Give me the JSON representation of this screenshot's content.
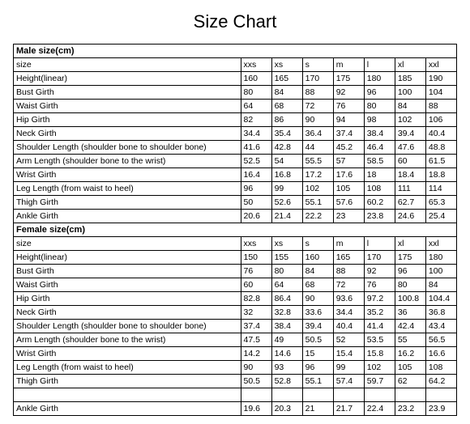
{
  "title": "Size Chart",
  "columns_count": 7,
  "sizes": [
    "xxs",
    "xs",
    "s",
    "m",
    "l",
    "xl",
    "xxl"
  ],
  "sections": [
    {
      "header": "Male size(cm)",
      "size_label": "size",
      "size_values": [
        "xxs",
        "xs",
        "s",
        "m",
        "l",
        "xl",
        "xxl"
      ],
      "rows": [
        {
          "label": "Height(linear)",
          "values": [
            "160",
            "165",
            "170",
            "175",
            "180",
            "185",
            "190"
          ]
        },
        {
          "label": "Bust Girth",
          "values": [
            "80",
            "84",
            "88",
            "92",
            "96",
            "100",
            "104"
          ]
        },
        {
          "label": "Waist Girth",
          "values": [
            "64",
            "68",
            "72",
            "76",
            "80",
            "84",
            "88"
          ]
        },
        {
          "label": "Hip Girth",
          "values": [
            "82",
            "86",
            "90",
            "94",
            "98",
            "102",
            "106"
          ]
        },
        {
          "label": "Neck Girth",
          "values": [
            "34.4",
            "35.4",
            "36.4",
            "37.4",
            "38.4",
            "39.4",
            "40.4"
          ]
        },
        {
          "label": "Shoulder Length (shoulder bone to shoulder bone)",
          "values": [
            "41.6",
            "42.8",
            "44",
            "45.2",
            "46.4",
            "47.6",
            "48.8"
          ]
        },
        {
          "label": "Arm Length (shoulder bone to the wrist)",
          "values": [
            "52.5",
            "54",
            "55.5",
            "57",
            "58.5",
            "60",
            "61.5"
          ]
        },
        {
          "label": "Wrist Girth",
          "values": [
            "16.4",
            "16.8",
            "17.2",
            "17.6",
            "18",
            "18.4",
            "18.8"
          ]
        },
        {
          "label": "Leg Length (from waist to heel)",
          "values": [
            "96",
            "99",
            "102",
            "105",
            "108",
            "111",
            "114"
          ],
          "dash_top": true
        },
        {
          "label": "Thigh Girth",
          "values": [
            "50",
            "52.6",
            "55.1",
            "57.6",
            "60.2",
            "62.7",
            "65.3"
          ]
        },
        {
          "label": "Ankle Girth",
          "values": [
            "20.6",
            "21.4",
            "22.2",
            "23",
            "23.8",
            "24.6",
            "25.4"
          ],
          "dash_bottom": true
        }
      ]
    },
    {
      "header": "Female size(cm)",
      "size_label": "size",
      "size_values": [
        "xxs",
        "xs",
        "s",
        "m",
        "l",
        "xl",
        "xxl"
      ],
      "rows": [
        {
          "label": "Height(linear)",
          "values": [
            "150",
            "155",
            "160",
            "165",
            "170",
            "175",
            "180"
          ]
        },
        {
          "label": "Bust Girth",
          "values": [
            "76",
            "80",
            "84",
            "88",
            "92",
            "96",
            "100"
          ]
        },
        {
          "label": "Waist Girth",
          "values": [
            "60",
            "64",
            "68",
            "72",
            "76",
            "80",
            "84"
          ]
        },
        {
          "label": "Hip Girth",
          "values": [
            "82.8",
            "86.4",
            "90",
            "93.6",
            "97.2",
            "100.8",
            "104.4"
          ]
        },
        {
          "label": "Neck Girth",
          "values": [
            "32",
            "32.8",
            "33.6",
            "34.4",
            "35.2",
            "36",
            "36.8"
          ]
        },
        {
          "label": "Shoulder Length (shoulder bone to shoulder bone)",
          "values": [
            "37.4",
            "38.4",
            "39.4",
            "40.4",
            "41.4",
            "42.4",
            "43.4"
          ]
        },
        {
          "label": "Arm Length (shoulder bone to the wrist)",
          "values": [
            "47.5",
            "49",
            "50.5",
            "52",
            "53.5",
            "55",
            "56.5"
          ]
        },
        {
          "label": "Wrist Girth",
          "values": [
            "14.2",
            "14.6",
            "15",
            "15.4",
            "15.8",
            "16.2",
            "16.6"
          ]
        },
        {
          "label": "Leg Length (from waist to heel)",
          "values": [
            "90",
            "93",
            "96",
            "99",
            "102",
            "105",
            "108"
          ]
        },
        {
          "label": "Thigh Girth",
          "values": [
            "50.5",
            "52.8",
            "55.1",
            "57.4",
            "59.7",
            "62",
            "64.2"
          ]
        },
        {
          "label": "Ankle Girth",
          "values": [
            "19.6",
            "20.3",
            "21",
            "21.7",
            "22.4",
            "23.2",
            "23.9"
          ],
          "spacer_before": true
        }
      ]
    }
  ],
  "colors": {
    "border": "#000000",
    "background": "#ffffff",
    "text": "#000000",
    "dash": "#555555"
  },
  "typography": {
    "title_fontsize": 22,
    "body_fontsize": 10.5,
    "header_fontsize": 11,
    "font_family": "Arial"
  }
}
